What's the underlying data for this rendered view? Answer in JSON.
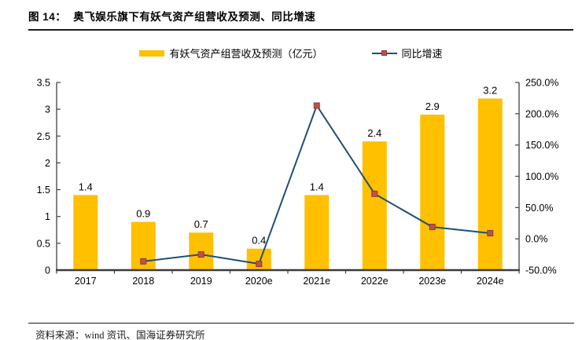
{
  "title": {
    "prefix": "图 14：",
    "text": "奥飞娱乐旗下有妖气资产组营收及预测、同比增速"
  },
  "legend": [
    {
      "label": "有妖气资产组营收及预测（亿元）",
      "swatch": "bar"
    },
    {
      "label": "同比增速",
      "swatch": "line-with-square-marker"
    }
  ],
  "source": "资料来源：wind 资讯、国海证券研究所",
  "colors": {
    "bar": "#FFC000",
    "line": "#1F4E79",
    "marker": "#C0504D",
    "marker_edge": "#8E3A37",
    "axis": "#404040",
    "x_axis": "#3A3A3A"
  },
  "chart_data": {
    "type": "bar",
    "title": "奥飞娱乐旗下有妖气资产组营收及预测、同比增速",
    "categories": [
      "2017",
      "2018",
      "2019",
      "2020e",
      "2021e",
      "2022e",
      "2023e",
      "2024e"
    ],
    "series": [
      {
        "name": "有妖气资产组营收及预测（亿元）",
        "type": "bar",
        "axis": "left",
        "values": [
          1.4,
          0.9,
          0.7,
          0.4,
          1.4,
          2.4,
          2.9,
          3.2
        ],
        "labels": [
          "1.4",
          "0.9",
          "0.7",
          "0.4",
          "1.4",
          "2.4",
          "2.9",
          "3.2"
        ]
      },
      {
        "name": "同比增速",
        "type": "line",
        "axis": "right",
        "values": [
          null,
          -36,
          -25,
          -40,
          213,
          72,
          19,
          9
        ]
      }
    ],
    "left_axis": {
      "min": 0,
      "max": 3.5,
      "step": 0.5,
      "ticks": [
        "0",
        "0.5",
        "1",
        "1.5",
        "2",
        "2.5",
        "3",
        "3.5"
      ]
    },
    "right_axis": {
      "min": -50,
      "max": 250,
      "step": 50,
      "ticks": [
        "-50.0%",
        "0.0%",
        "50.0%",
        "100.0%",
        "150.0%",
        "200.0%",
        "250.0%"
      ]
    },
    "grid": false,
    "legend_position": "top"
  }
}
